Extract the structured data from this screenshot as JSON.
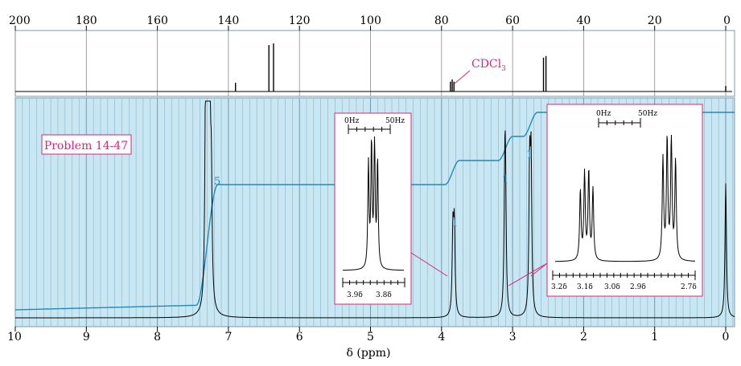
{
  "chart_data": [
    {
      "type": "line",
      "id": "carbon13_spectrum",
      "x_axis": {
        "ticks": [
          "200",
          "180",
          "160",
          "140",
          "120",
          "100",
          "80",
          "60",
          "40",
          "20",
          "0"
        ],
        "range": [
          200,
          0
        ]
      },
      "peaks": [
        {
          "x": 138.0,
          "height": 0.16
        },
        {
          "x": 128.6,
          "height": 0.85
        },
        {
          "x": 127.3,
          "height": 0.88
        },
        {
          "x": 77.5,
          "height": 0.18
        },
        {
          "x": 77.0,
          "height": 0.22
        },
        {
          "x": 76.5,
          "height": 0.18
        },
        {
          "x": 51.3,
          "height": 0.62
        },
        {
          "x": 50.6,
          "height": 0.65
        },
        {
          "x": 0.0,
          "height": 0.1
        }
      ],
      "annotations": [
        {
          "text": "CDCl",
          "subscript": "3"
        }
      ]
    },
    {
      "type": "line",
      "id": "proton_spectrum",
      "title": "Problem 14-47",
      "xlabel": "δ (ppm)",
      "x_axis": {
        "ticks": [
          "10",
          "9",
          "8",
          "7",
          "6",
          "5",
          "4",
          "3",
          "2",
          "1",
          "0"
        ],
        "range": [
          10,
          0
        ]
      },
      "peaks": [
        {
          "x": 7.32,
          "height": 1.0
        },
        {
          "x": 7.3,
          "height": 0.97
        },
        {
          "x": 7.28,
          "height": 0.92
        },
        {
          "x": 7.26,
          "height": 0.7
        },
        {
          "x": 7.24,
          "height": 0.52
        },
        {
          "x": 3.84,
          "height": 0.38
        },
        {
          "x": 3.82,
          "height": 0.4
        },
        {
          "x": 3.11,
          "height": 0.5
        },
        {
          "x": 3.1,
          "height": 0.52
        },
        {
          "x": 2.76,
          "height": 0.65
        },
        {
          "x": 2.74,
          "height": 0.68
        },
        {
          "x": 0.0,
          "height": 0.62
        }
      ],
      "integral_labels": [
        {
          "text": "5",
          "x": 7.15
        },
        {
          "text": "1",
          "x": 3.86
        },
        {
          "text": "1",
          "x": 3.1
        },
        {
          "text": "1",
          "x": 2.75
        }
      ],
      "integral_steps": [
        {
          "start": 7.45,
          "end": 7.15,
          "rise": 0.5
        },
        {
          "start": 3.95,
          "end": 3.75,
          "rise": 0.1
        },
        {
          "start": 3.2,
          "end": 3.0,
          "rise": 0.1
        },
        {
          "start": 2.85,
          "end": 2.65,
          "rise": 0.1
        }
      ],
      "insets": [
        {
          "scale_labels": [
            "0Hz",
            "50Hz"
          ],
          "axis_labels": [
            "3.9δ",
            "3.8δ"
          ],
          "peaks": [
            {
              "x": 0.42,
              "height": 0.78
            },
            {
              "x": 0.47,
              "height": 0.92
            },
            {
              "x": 0.52,
              "height": 0.95
            },
            {
              "x": 0.57,
              "height": 0.8
            }
          ]
        },
        {
          "scale_labels": [
            "0Hz",
            "50Hz"
          ],
          "axis_labels": [
            "3.2δ",
            "3.1δ",
            "3.0δ",
            "2.9δ",
            "2.7δ"
          ],
          "peaks": [
            {
              "x": 0.18,
              "height": 0.55
            },
            {
              "x": 0.21,
              "height": 0.68
            },
            {
              "x": 0.24,
              "height": 0.7
            },
            {
              "x": 0.27,
              "height": 0.56
            },
            {
              "x": 0.77,
              "height": 0.8
            },
            {
              "x": 0.8,
              "height": 0.95
            },
            {
              "x": 0.83,
              "height": 0.96
            },
            {
              "x": 0.86,
              "height": 0.78
            }
          ]
        }
      ]
    }
  ],
  "colors": {
    "plot_background": "#c9e7f3",
    "grid": "#8ab3c8",
    "spectrum": "#000000",
    "integral": "#2189b8",
    "accent": "#d8257a",
    "frame": "#7d9aad"
  }
}
